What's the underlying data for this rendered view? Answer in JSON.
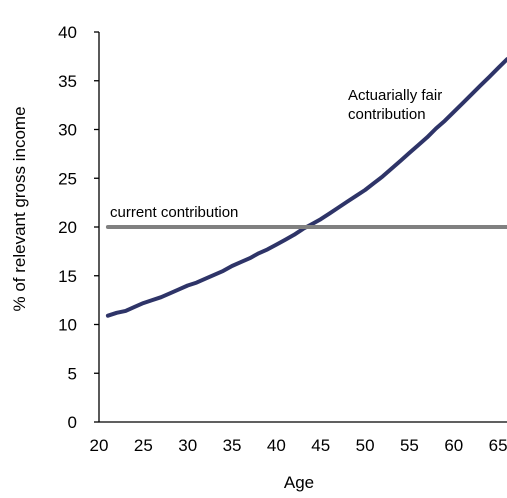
{
  "chart_data": {
    "type": "line",
    "xlabel": "Age",
    "ylabel": "% of relevant  gross income",
    "xlim": [
      20,
      66
    ],
    "ylim": [
      0,
      40
    ],
    "x_ticks": [
      20,
      25,
      30,
      35,
      40,
      45,
      50,
      55,
      60,
      65
    ],
    "y_ticks": [
      0,
      5,
      10,
      15,
      20,
      25,
      30,
      35,
      40
    ],
    "grid": false,
    "legend": "none",
    "series": [
      {
        "name": "Actuarially fair contribution",
        "color": "#2e3468",
        "x": [
          21,
          22,
          23,
          24,
          25,
          26,
          27,
          28,
          29,
          30,
          31,
          32,
          33,
          34,
          35,
          36,
          37,
          38,
          39,
          40,
          41,
          42,
          43,
          44,
          45,
          46,
          47,
          48,
          49,
          50,
          51,
          52,
          53,
          54,
          55,
          56,
          57,
          58,
          59,
          60,
          61,
          62,
          63,
          64,
          65,
          66
        ],
        "y": [
          10.9,
          11.2,
          11.4,
          11.8,
          12.2,
          12.5,
          12.8,
          13.2,
          13.6,
          14.0,
          14.3,
          14.7,
          15.1,
          15.5,
          16.0,
          16.4,
          16.8,
          17.3,
          17.7,
          18.2,
          18.7,
          19.2,
          19.8,
          20.3,
          20.8,
          21.4,
          22.0,
          22.6,
          23.2,
          23.8,
          24.5,
          25.2,
          26.0,
          26.8,
          27.6,
          28.4,
          29.2,
          30.1,
          30.9,
          31.8,
          32.7,
          33.6,
          34.5,
          35.4,
          36.3,
          37.2
        ]
      },
      {
        "name": "current contribution",
        "color": "#808080",
        "x": [
          21,
          66
        ],
        "y": [
          20,
          20
        ]
      }
    ],
    "annotations": [
      {
        "id": "fair",
        "lines": [
          "Actuarially fair",
          "contribution"
        ]
      },
      {
        "id": "current",
        "lines": [
          "current contribution"
        ]
      }
    ]
  }
}
